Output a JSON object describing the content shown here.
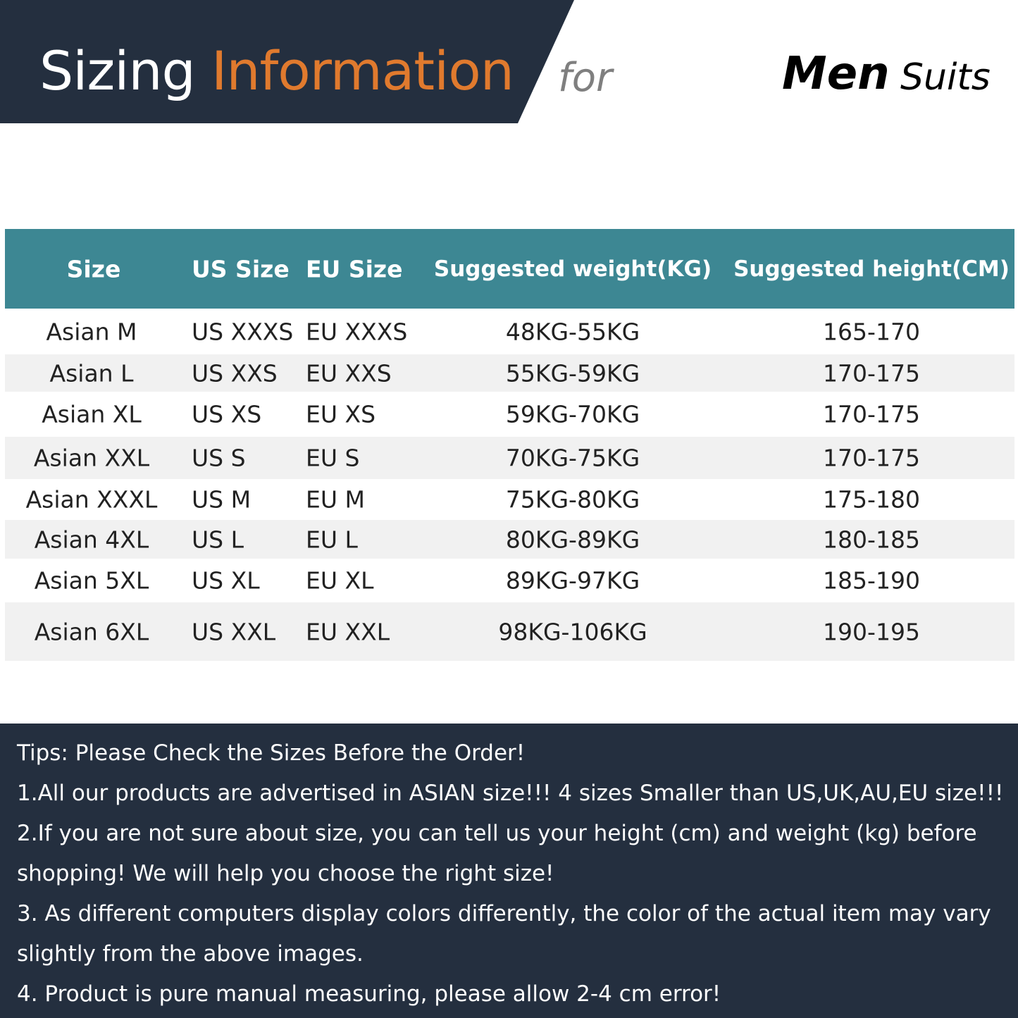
{
  "header": {
    "title_part1": "Sizing",
    "title_part2": "Information",
    "for": "for",
    "men": "Men",
    "suits": "Suits",
    "accent_color": "#e07a2e",
    "banner_color": "#242f3f"
  },
  "table": {
    "header_color": "#3d8793",
    "columns": [
      "Size",
      "US Size",
      "EU Size",
      "Suggested weight(KG)",
      "Suggested height(CM)"
    ],
    "rows": [
      [
        "Asian M",
        "US XXXS",
        "EU XXXS",
        "48KG-55KG",
        "165-170"
      ],
      [
        "Asian L",
        "US XXS",
        "EU XXS",
        "55KG-59KG",
        "170-175"
      ],
      [
        "Asian XL",
        "US XS",
        "EU XS",
        "59KG-70KG",
        "170-175"
      ],
      [
        "Asian XXL",
        "US S",
        "EU S",
        "70KG-75KG",
        "170-175"
      ],
      [
        "Asian XXXL",
        "US M",
        "EU M",
        "75KG-80KG",
        "175-180"
      ],
      [
        "Asian 4XL",
        "US L",
        "EU L",
        "80KG-89KG",
        "180-185"
      ],
      [
        "Asian 5XL",
        "US XL",
        "EU XL",
        "89KG-97KG",
        "185-190"
      ],
      [
        "Asian 6XL",
        "US XXL",
        "EU XXL",
        "98KG-106KG",
        "190-195"
      ]
    ]
  },
  "tips": [
    "Tips: Please Check the Sizes Before the Order!",
    "1.All our products are advertised in ASIAN size!!! 4 sizes Smaller than US,UK,AU,EU size!!!",
    "2.If you are not sure about size, you can tell us your height (cm) and weight (kg) before",
    "shopping! We will help you choose the right size!",
    "3. As different computers display colors differently, the color of the actual item may vary",
    "slightly from the above images.",
    "4. Product is pure manual measuring, please allow 2-4 cm error!"
  ]
}
